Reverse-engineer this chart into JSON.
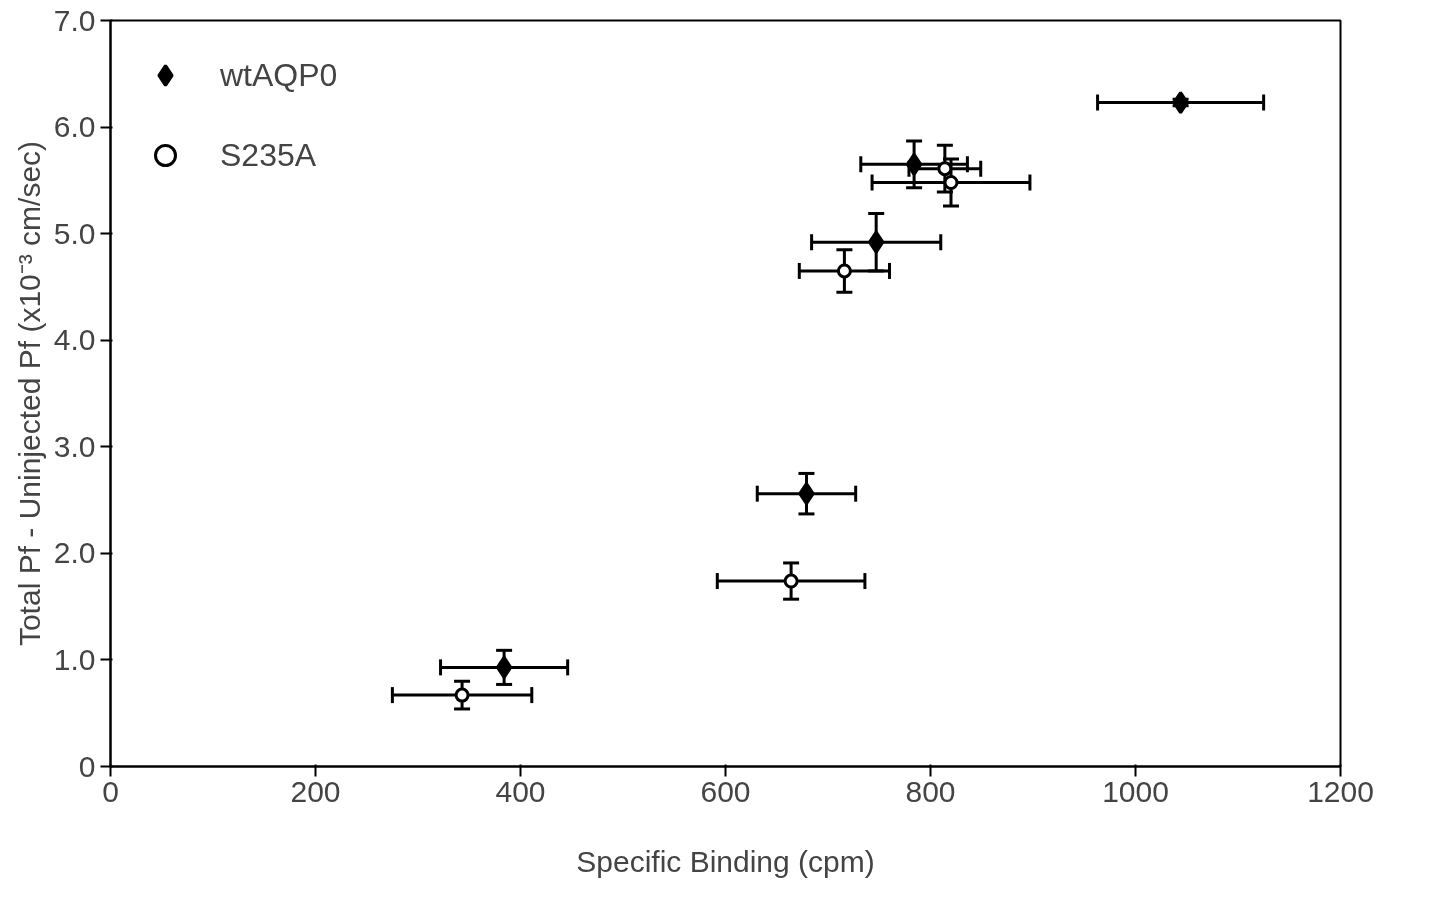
{
  "chart_data": {
    "type": "scatter",
    "xlabel": "Specific Binding (cpm)",
    "ylabel": "Total Pf - Uninjected Pf (x10⁻³ cm/sec)",
    "xlim": [
      0,
      1200
    ],
    "xticks": [
      0,
      200,
      400,
      600,
      800,
      1000,
      1200
    ],
    "ylim": [
      0,
      7.0
    ],
    "yticks": [
      0,
      {
        "value": 1,
        "label": "1.0"
      },
      {
        "value": 2,
        "label": "2.0"
      },
      {
        "value": 3,
        "label": "3.0"
      },
      {
        "value": 4,
        "label": "4.0"
      },
      {
        "value": 5,
        "label": "5.0"
      },
      {
        "value": 6,
        "label": "6.0"
      },
      {
        "value": 7,
        "label": "7.0"
      }
    ],
    "grid": false,
    "legend": "top left",
    "series": [
      {
        "name": "wtAQP0",
        "color": "#000000",
        "marker": "diamond",
        "x": [
          384,
          679,
          747,
          784,
          1044
        ],
        "values": [
          0.93,
          2.56,
          4.92,
          5.65,
          6.23
        ],
        "errors": [
          0.16,
          0.19,
          0.27,
          0.22,
          0.03
        ],
        "xerrors": [
          62,
          48,
          63,
          52,
          81
        ]
      },
      {
        "name": "S235A",
        "color": "#000000",
        "marker": "circle",
        "x": [
          343,
          664,
          716,
          814,
          820
        ],
        "values": [
          0.67,
          1.74,
          4.65,
          5.61,
          5.48
        ],
        "errors": [
          0.13,
          0.17,
          0.2,
          0.22,
          0.22
        ],
        "xerrors": [
          68,
          72,
          44,
          35,
          77
        ]
      }
    ]
  }
}
